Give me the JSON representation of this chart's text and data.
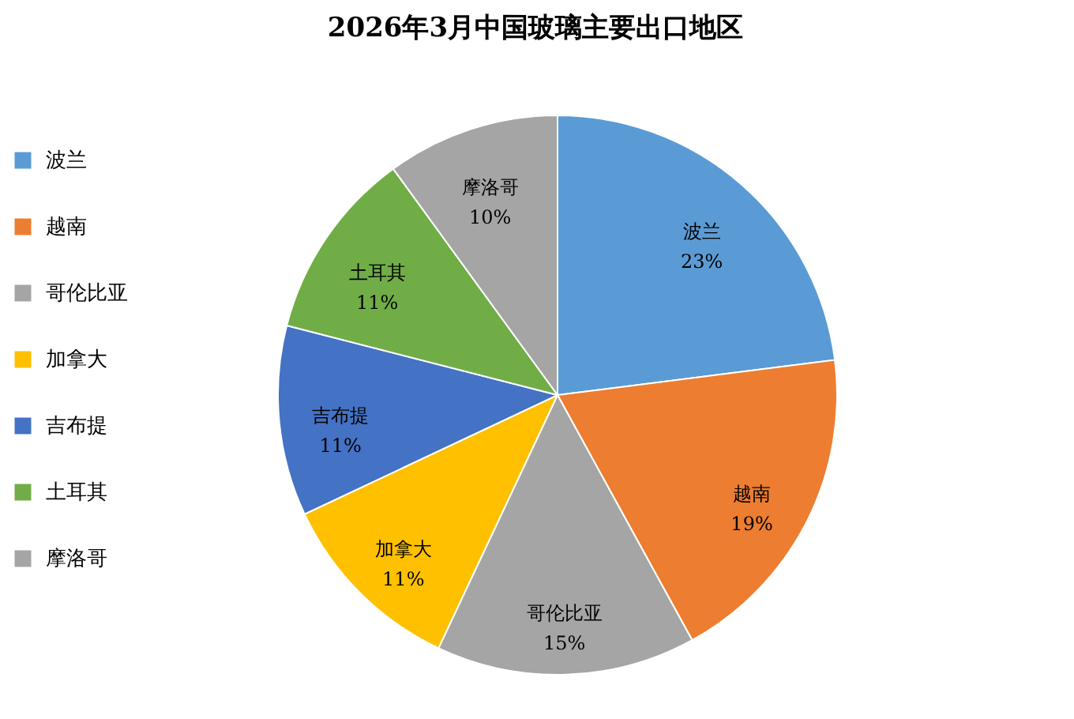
{
  "chart_data": {
    "type": "pie",
    "title": "2026年3月中国玻璃主要出口地区",
    "categories": [
      "波兰",
      "越南",
      "哥伦比亚",
      "加拿大",
      "吉布提",
      "土耳其",
      "摩洛哥"
    ],
    "values": [
      23,
      19,
      15,
      11,
      11,
      11,
      10
    ],
    "colors": [
      "#5b9bd5",
      "#ed7d31",
      "#a5a5a5",
      "#ffc000",
      "#4472c4",
      "#70ad47",
      "#a5a5a5"
    ],
    "value_labels": [
      "23%",
      "19%",
      "15%",
      "11%",
      "11%",
      "11%",
      "10%"
    ],
    "legend": "left"
  }
}
